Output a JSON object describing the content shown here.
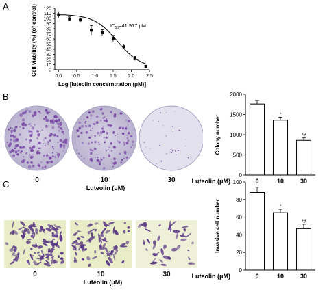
{
  "panels": {
    "a": "A",
    "b": "B",
    "c": "C"
  },
  "plate_labels": {
    "b": [
      "0",
      "10",
      "30"
    ],
    "c": [
      "0",
      "10",
      "30"
    ],
    "xlabel": "Luteolin (μM)"
  },
  "colors": {
    "plate_stain": "#7a4aa6",
    "plate_background": "#d9d5e6",
    "transwell_background": "#e8edc8",
    "bar_fill": "#ffffff",
    "axis": "#000000"
  },
  "chart_data": [
    {
      "type": "scatter",
      "xlabel": "Log [luteolin concerntration (μM)]",
      "ylabel": "Cell viability (%) (of control)",
      "annotation": "IC50=41.917 μM",
      "x": [
        0.0,
        0.3,
        0.6,
        0.9,
        1.2,
        1.5,
        1.8,
        2.1,
        2.4
      ],
      "y": [
        107,
        99,
        97,
        77,
        72,
        61,
        45,
        22,
        6
      ],
      "err": [
        6,
        4,
        4,
        9,
        6,
        6,
        5,
        4,
        3
      ],
      "xticks": [
        "0.0",
        "0.5",
        "1.0",
        "1.5",
        "2.0",
        "2.5"
      ],
      "yticks": [
        "0",
        "10",
        "20",
        "30",
        "40",
        "50",
        "60",
        "70",
        "80",
        "90",
        "100",
        "110",
        "120"
      ],
      "xlim": [
        -0.1,
        2.5
      ],
      "ylim": [
        0,
        120
      ],
      "fit": true
    },
    {
      "type": "bar",
      "xlabel": "Luteolin (μM)",
      "ylabel": "Colony number",
      "categories": [
        "0",
        "10",
        "30"
      ],
      "values": [
        1760,
        1360,
        860
      ],
      "err": [
        90,
        75,
        60
      ],
      "annotations": [
        "",
        "*",
        "*#"
      ],
      "yticks": [
        "0",
        "500",
        "1000",
        "1500",
        "2000"
      ],
      "ylim": [
        0,
        2000
      ]
    },
    {
      "type": "bar",
      "xlabel": "Luteolin (μM)",
      "ylabel": "Invasive cell number",
      "categories": [
        "0",
        "10",
        "30"
      ],
      "values": [
        88,
        65,
        47
      ],
      "err": [
        6,
        4,
        5
      ],
      "annotations": [
        "",
        "*",
        "*#"
      ],
      "yticks": [
        "0",
        "20",
        "40",
        "60",
        "80",
        "100"
      ],
      "ylim": [
        0,
        100
      ]
    }
  ]
}
